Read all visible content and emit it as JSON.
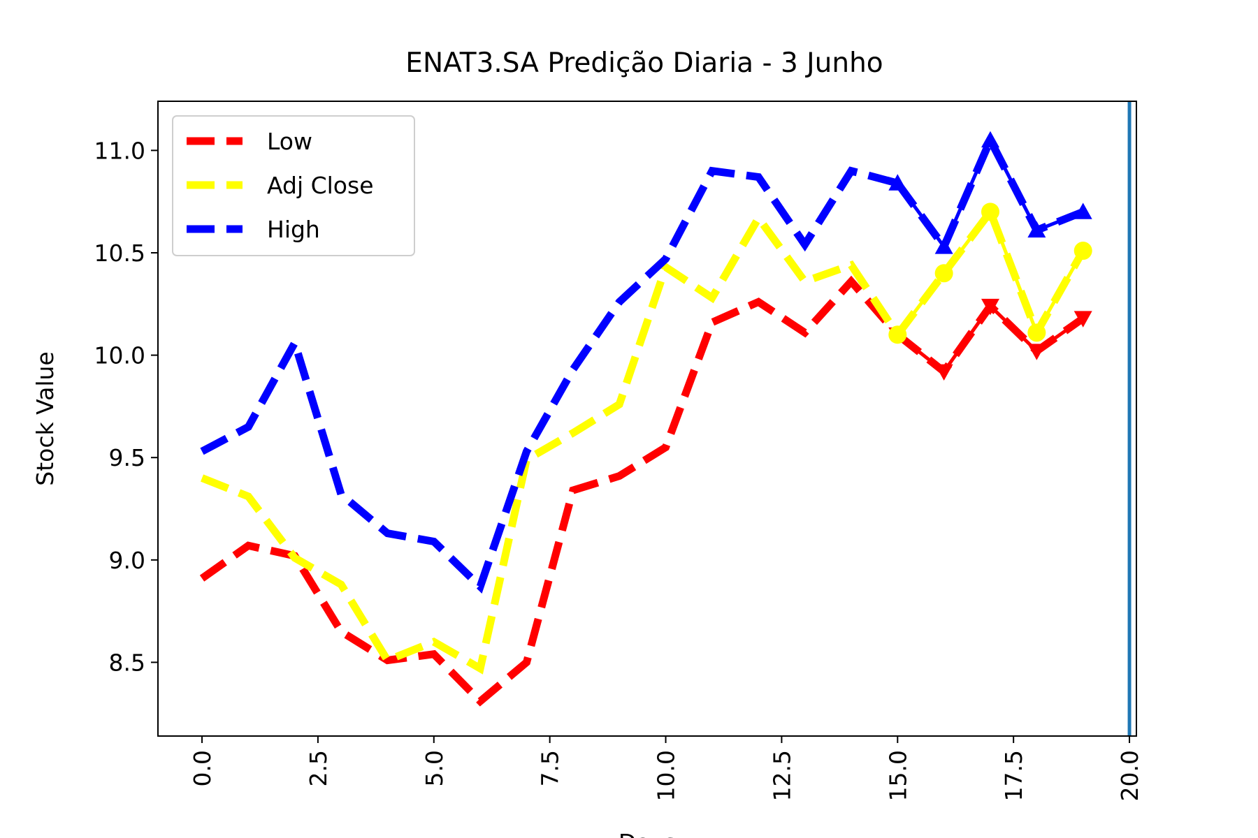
{
  "chart_data": {
    "type": "line",
    "title": "ENAT3.SA Predição Diaria - 3 Junho",
    "xlabel": "Days",
    "ylabel": "Stock Value",
    "xlim": [
      -0.95,
      20.15
    ],
    "ylim": [
      8.14,
      11.24
    ],
    "xticks": [
      0.0,
      2.5,
      5.0,
      7.5,
      10.0,
      12.5,
      15.0,
      17.5,
      20.0
    ],
    "xtick_labels": [
      "0.0",
      "2.5",
      "5.0",
      "7.5",
      "10.0",
      "12.5",
      "15.0",
      "17.5",
      "20.0"
    ],
    "yticks": [
      8.5,
      9.0,
      9.5,
      10.0,
      10.5,
      11.0
    ],
    "ytick_labels": [
      "8.5",
      "9.0",
      "9.5",
      "10.0",
      "10.5",
      "11.0"
    ],
    "grid": false,
    "legend_position": "top-left",
    "vline": {
      "x": 20.0,
      "color": "#1f77b4"
    },
    "x": [
      0,
      1,
      2,
      3,
      4,
      5,
      6,
      7,
      8,
      9,
      10,
      11,
      12,
      13,
      14,
      15,
      16,
      17,
      18,
      19
    ],
    "series": [
      {
        "name": "Low",
        "color": "#ff0000",
        "marker": "triangle-down",
        "marker_from": 15,
        "values": [
          8.91,
          9.07,
          9.02,
          8.65,
          8.51,
          8.54,
          8.31,
          8.5,
          9.34,
          9.41,
          9.55,
          10.16,
          10.26,
          10.11,
          10.36,
          10.1,
          9.92,
          10.24,
          10.02,
          10.18
        ]
      },
      {
        "name": "Adj Close",
        "color": "#ffff00",
        "marker": "circle",
        "marker_from": 15,
        "values": [
          9.4,
          9.31,
          9.01,
          8.88,
          8.51,
          8.6,
          8.47,
          9.49,
          9.62,
          9.76,
          10.43,
          10.28,
          10.67,
          10.36,
          10.44,
          10.1,
          10.4,
          10.7,
          10.11,
          10.51
        ]
      },
      {
        "name": "High",
        "color": "#0000ff",
        "marker": "triangle-up",
        "marker_from": 15,
        "values": [
          9.53,
          9.65,
          10.06,
          9.32,
          9.13,
          9.09,
          8.87,
          9.53,
          9.93,
          10.26,
          10.47,
          10.9,
          10.87,
          10.54,
          10.9,
          10.84,
          10.53,
          11.05,
          10.61,
          10.7
        ]
      }
    ]
  }
}
